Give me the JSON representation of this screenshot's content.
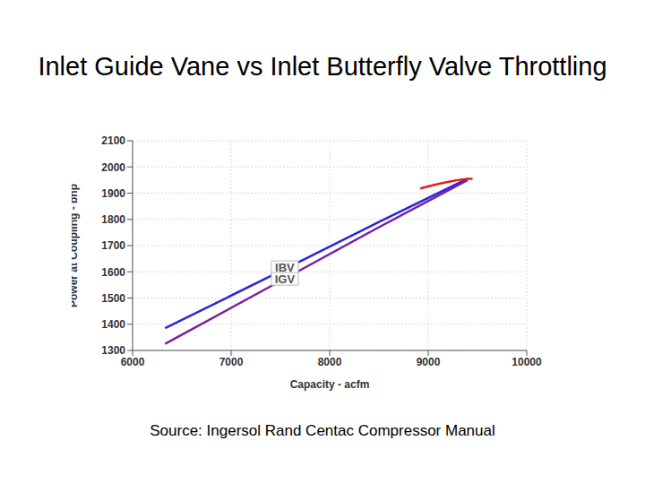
{
  "chart_data": {
    "type": "line",
    "title": "Inlet Guide Vane vs Inlet Butterfly Valve Throttling",
    "x_label": "Capacity - acfm",
    "y_label": "Power at Coupling - bhp",
    "xlim": [
      6000,
      10000
    ],
    "xticks": [
      6000,
      7000,
      8000,
      9000,
      10000
    ],
    "ylim": [
      1300,
      2100
    ],
    "yticks": [
      1300,
      1400,
      1500,
      1600,
      1700,
      1800,
      1900,
      2000,
      2100
    ],
    "grid": true,
    "series": [
      {
        "color": "#2828d8",
        "x": [
          6330,
          7500,
          8500,
          9400
        ],
        "values": [
          1385,
          1602,
          1790,
          1955
        ]
      },
      {
        "color": "#7a1fa0",
        "x": [
          6330,
          7500,
          8500,
          9400
        ],
        "values": [
          1325,
          1565,
          1770,
          1950
        ]
      },
      {
        "color": "#e0201b",
        "x": [
          8920,
          9100,
          9300,
          9400,
          9450
        ],
        "values": [
          1918,
          1935,
          1950,
          1955,
          1955
        ]
      }
    ],
    "annotations": [
      {
        "text": "IBV",
        "x": 7545,
        "y": 1618
      },
      {
        "text": "IGV",
        "x": 7545,
        "y": 1573
      }
    ],
    "source": "Source: Ingersol Rand Centac Compressor Manual"
  }
}
